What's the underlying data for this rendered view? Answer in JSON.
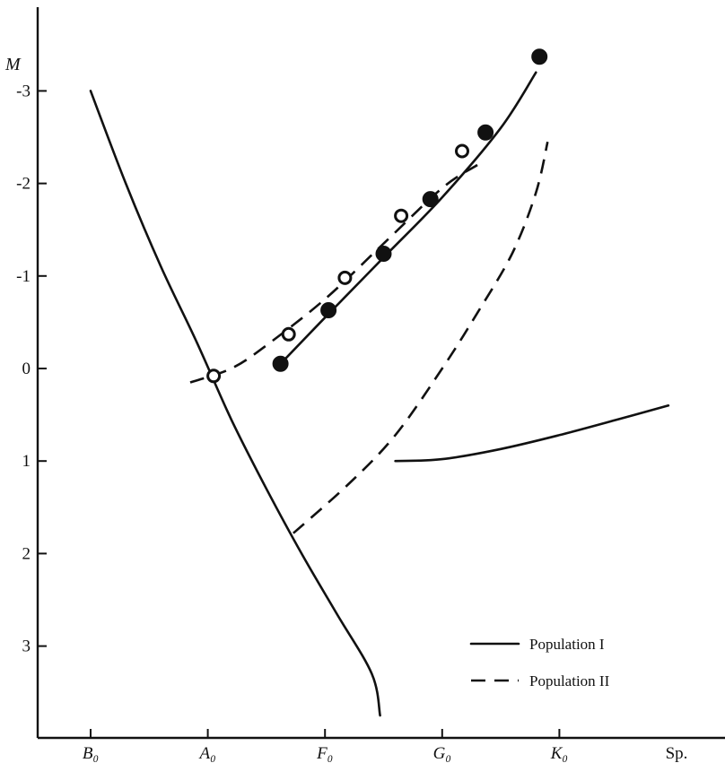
{
  "chart_data": {
    "type": "line",
    "ylabel": "M",
    "y_ticks": [
      "-3",
      "-2",
      "-1",
      "0",
      "1",
      "2",
      "3"
    ],
    "x_ticks": [
      "B₀",
      "A₀",
      "F₀",
      "G₀",
      "K₀",
      "Sp."
    ],
    "x_tick_positions": [
      0,
      1,
      2,
      3,
      4,
      5
    ],
    "xlim": [
      -0.45,
      5.4
    ],
    "ylim": [
      3.85,
      -3.9
    ],
    "y_inverted": true,
    "legend": {
      "position": "bottom-right",
      "entries": [
        {
          "label": "Population I",
          "style": "solid"
        },
        {
          "label": "Population II",
          "style": "dashed"
        }
      ]
    },
    "series": [
      {
        "style": "solid",
        "population": "I",
        "points": [
          [
            0.0,
            -3.0
          ],
          [
            0.3,
            -2.0
          ],
          [
            0.6,
            -1.1
          ],
          [
            0.9,
            -0.3
          ],
          [
            1.2,
            0.55
          ],
          [
            1.5,
            1.3
          ],
          [
            1.8,
            2.0
          ],
          [
            2.1,
            2.65
          ],
          [
            2.4,
            3.3
          ],
          [
            2.47,
            3.75
          ]
        ]
      },
      {
        "style": "solid",
        "population": "I",
        "points": [
          [
            1.62,
            -0.05
          ],
          [
            2.0,
            -0.55
          ],
          [
            2.5,
            -1.2
          ],
          [
            3.0,
            -1.85
          ],
          [
            3.5,
            -2.6
          ],
          [
            3.8,
            -3.2
          ]
        ]
      },
      {
        "style": "solid",
        "population": "I",
        "points": [
          [
            2.6,
            1.0
          ],
          [
            3.0,
            0.98
          ],
          [
            3.5,
            0.87
          ],
          [
            4.0,
            0.72
          ],
          [
            4.5,
            0.55
          ],
          [
            4.93,
            0.4
          ]
        ]
      },
      {
        "style": "dashed",
        "population": "II",
        "points": [
          [
            0.85,
            0.15
          ],
          [
            1.2,
            0.0
          ],
          [
            1.5,
            -0.25
          ],
          [
            2.0,
            -0.75
          ],
          [
            2.5,
            -1.35
          ],
          [
            3.0,
            -1.95
          ],
          [
            3.3,
            -2.2
          ]
        ]
      },
      {
        "style": "dashed",
        "population": "II",
        "points": [
          [
            1.73,
            1.78
          ],
          [
            2.2,
            1.25
          ],
          [
            2.6,
            0.72
          ],
          [
            3.0,
            0.0
          ],
          [
            3.3,
            -0.6
          ],
          [
            3.6,
            -1.25
          ],
          [
            3.8,
            -1.9
          ],
          [
            3.9,
            -2.45
          ]
        ]
      },
      {
        "marker": "filled-circle",
        "population": "I",
        "points": [
          [
            1.62,
            -0.05
          ],
          [
            2.03,
            -0.63
          ],
          [
            2.5,
            -1.24
          ],
          [
            2.9,
            -1.83
          ],
          [
            3.37,
            -2.55
          ],
          [
            3.83,
            -3.37
          ]
        ]
      },
      {
        "marker": "open-circle",
        "population": "II",
        "points": [
          [
            1.05,
            0.08
          ],
          [
            1.69,
            -0.37
          ],
          [
            2.17,
            -0.98
          ],
          [
            2.65,
            -1.65
          ],
          [
            3.17,
            -2.35
          ]
        ]
      }
    ]
  }
}
